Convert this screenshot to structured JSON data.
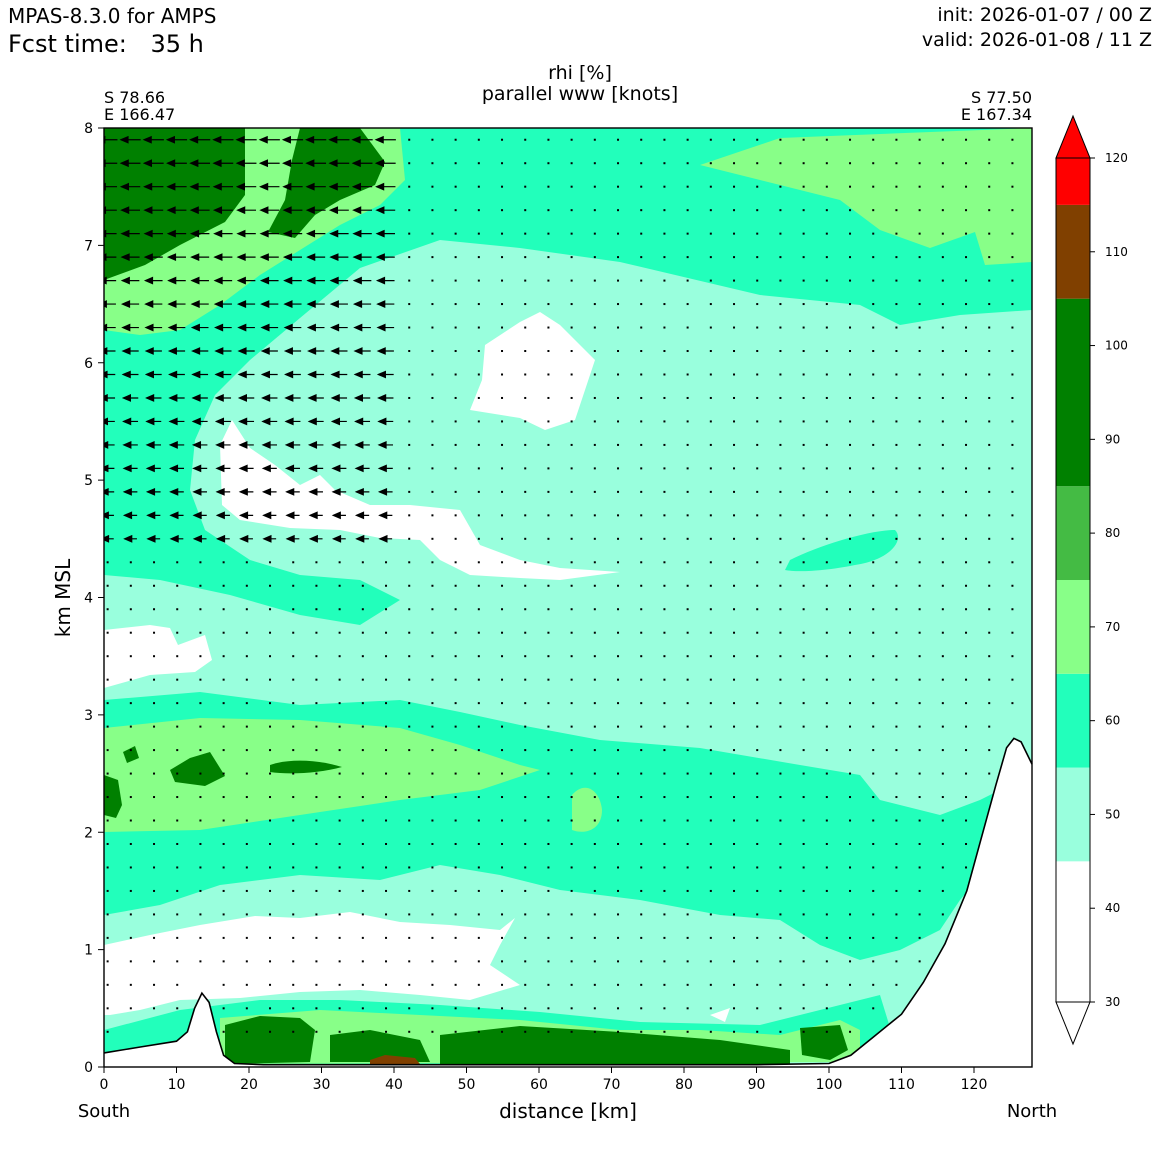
{
  "header": {
    "model": "MPAS-8.3.0 for AMPS",
    "fcst_label": "Fcst time:",
    "fcst_value": "35 h",
    "init": "init: 2026-01-07 / 00 Z",
    "valid": "valid: 2026-01-08 / 11 Z"
  },
  "chart_data": {
    "type": "contour cross-section with wind vectors",
    "title": "rhi [%]",
    "subtitle": "parallel www [knots]",
    "xlabel": "distance [km]",
    "ylabel": "km MSL",
    "xlim": [
      0,
      128
    ],
    "ylim": [
      0,
      8
    ],
    "x_ticks": [
      0,
      10,
      20,
      30,
      40,
      50,
      60,
      70,
      80,
      90,
      100,
      110,
      120
    ],
    "y_ticks": [
      0,
      1,
      2,
      3,
      4,
      5,
      6,
      7,
      8
    ],
    "start_point": {
      "lat": "S 78.66",
      "lon": "E 166.47"
    },
    "end_point": {
      "lat": "S 77.50",
      "lon": "E 167.34"
    },
    "left_direction": "South",
    "right_direction": "North",
    "colorbar": {
      "ticks": [
        30,
        40,
        50,
        60,
        70,
        80,
        90,
        100,
        110,
        120
      ],
      "bins": [
        {
          "from": 30,
          "to": 45,
          "color": "#ffffff"
        },
        {
          "from": 45,
          "to": 55,
          "color": "#99ffdd"
        },
        {
          "from": 55,
          "to": 65,
          "color": "#22ffbb"
        },
        {
          "from": 65,
          "to": 75,
          "color": "#88ff88"
        },
        {
          "from": 75,
          "to": 85,
          "color": "#44bb44"
        },
        {
          "from": 85,
          "to": 105,
          "color": "#008000"
        },
        {
          "from": 105,
          "to": 115,
          "color": "#804000"
        },
        {
          "from": 115,
          "to": 125,
          "color": "#ff0000"
        }
      ],
      "extend": "both"
    },
    "terrain": [
      [
        0,
        0.12
      ],
      [
        5,
        0.17
      ],
      [
        10,
        0.22
      ],
      [
        11.5,
        0.3
      ],
      [
        12.5,
        0.5
      ],
      [
        13.5,
        0.63
      ],
      [
        14.5,
        0.55
      ],
      [
        15.5,
        0.3
      ],
      [
        16.5,
        0.1
      ],
      [
        18,
        0.03
      ],
      [
        22,
        0.02
      ],
      [
        30,
        0.02
      ],
      [
        40,
        0.02
      ],
      [
        50,
        0.02
      ],
      [
        60,
        0.02
      ],
      [
        70,
        0.02
      ],
      [
        80,
        0.02
      ],
      [
        90,
        0.02
      ],
      [
        100,
        0.03
      ],
      [
        103,
        0.1
      ],
      [
        106,
        0.25
      ],
      [
        110,
        0.45
      ],
      [
        113,
        0.72
      ],
      [
        116,
        1.05
      ],
      [
        119,
        1.5
      ],
      [
        121,
        1.95
      ],
      [
        123,
        2.4
      ],
      [
        124.5,
        2.72
      ],
      [
        125.5,
        2.8
      ],
      [
        126.5,
        2.77
      ],
      [
        128,
        2.58
      ]
    ],
    "vector_grid": {
      "x_spacing_km": 3.2,
      "y_spacing_km": 0.2,
      "long_arrow_region": "x 0-40 km, z 4.5-8 km (easterly flow, ~20-25 knots)"
    }
  }
}
